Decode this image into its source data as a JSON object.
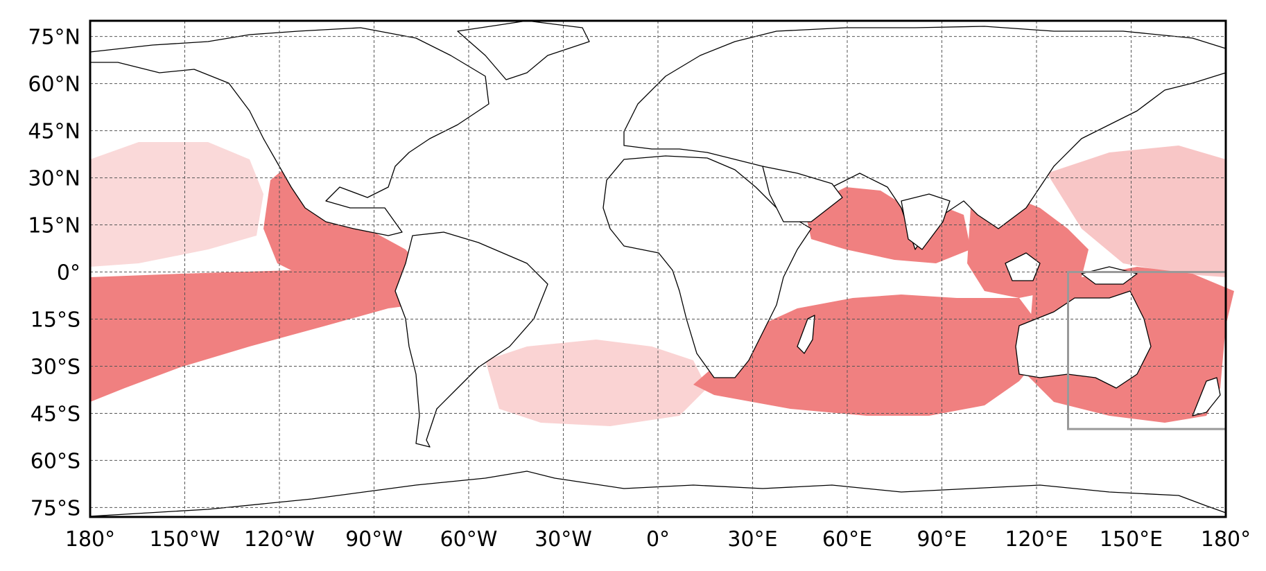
{
  "map": {
    "projection": "equirectangular",
    "lon_range": [
      -180,
      180
    ],
    "lat_range": [
      -78,
      80
    ],
    "grid": true,
    "colors": {
      "points": "#f08080",
      "coast": "#000000",
      "region_box": "#999999",
      "grid": "#555555"
    },
    "lon_ticks": [
      {
        "value": -180,
        "label": "180°"
      },
      {
        "value": -150,
        "label": "150°W"
      },
      {
        "value": -120,
        "label": "120°W"
      },
      {
        "value": -90,
        "label": "90°W"
      },
      {
        "value": -60,
        "label": "60°W"
      },
      {
        "value": -30,
        "label": "30°W"
      },
      {
        "value": 0,
        "label": "0°"
      },
      {
        "value": 30,
        "label": "30°E"
      },
      {
        "value": 60,
        "label": "60°E"
      },
      {
        "value": 90,
        "label": "90°E"
      },
      {
        "value": 120,
        "label": "120°E"
      },
      {
        "value": 150,
        "label": "150°E"
      },
      {
        "value": 180,
        "label": "180°"
      }
    ],
    "lat_ticks": [
      {
        "value": 75,
        "label": "75°N"
      },
      {
        "value": 60,
        "label": "60°N"
      },
      {
        "value": 45,
        "label": "45°N"
      },
      {
        "value": 30,
        "label": "30°N"
      },
      {
        "value": 15,
        "label": "15°N"
      },
      {
        "value": 0,
        "label": "0°"
      },
      {
        "value": -15,
        "label": "15°S"
      },
      {
        "value": -30,
        "label": "30°S"
      },
      {
        "value": -45,
        "label": "45°S"
      },
      {
        "value": -60,
        "label": "60°S"
      },
      {
        "value": -75,
        "label": "75°S"
      }
    ],
    "region_box": {
      "lon_min": 130,
      "lon_max": 180,
      "lat_min": -50,
      "lat_max": 0
    },
    "density_regions": [
      {
        "name": "south-pacific-band",
        "level": "dense"
      },
      {
        "name": "eastern-pacific-central-america",
        "level": "dense"
      },
      {
        "name": "indian-ocean-north",
        "level": "dense"
      },
      {
        "name": "indian-ocean-south",
        "level": "dense"
      },
      {
        "name": "maritime-continent",
        "level": "dense"
      },
      {
        "name": "australia-surroundings",
        "level": "dense"
      },
      {
        "name": "west-pacific",
        "level": "sparse"
      },
      {
        "name": "north-pacific",
        "level": "sparse"
      },
      {
        "name": "south-atlantic",
        "level": "sparse"
      }
    ]
  }
}
